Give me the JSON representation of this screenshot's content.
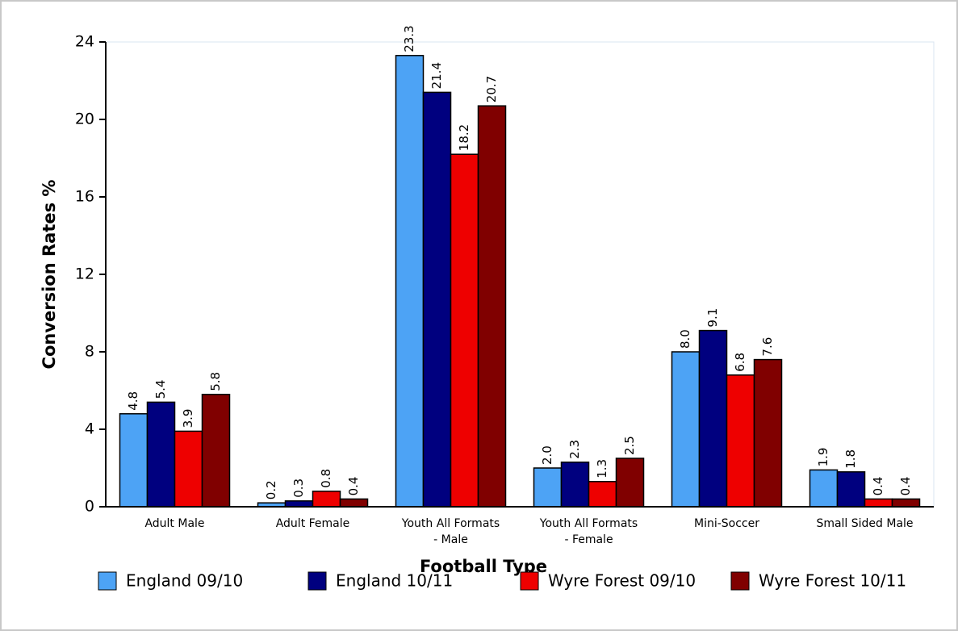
{
  "chart_data": {
    "type": "bar",
    "x_label": "Football Type",
    "y_label": "Conversion Rates %",
    "categories": [
      "Adult Male",
      "Adult Female",
      "Youth All Formats\n- Male",
      "Youth All Formats\n- Female",
      "Mini-Soccer",
      "Small Sided Male"
    ],
    "series": [
      {
        "name": "England 09/10",
        "color": "#4da3f5",
        "values": [
          4.8,
          0.2,
          23.3,
          2.0,
          8.0,
          1.9
        ],
        "value_labels": [
          "4.8",
          "0.2",
          "23.3",
          "2.0",
          "8.0",
          "1.9"
        ]
      },
      {
        "name": "England 10/11",
        "color": "#00007f",
        "values": [
          5.4,
          0.3,
          21.4,
          2.3,
          9.1,
          1.8
        ],
        "value_labels": [
          "5.4",
          "0.3",
          "21.4",
          "2.3",
          "9.1",
          "1.8"
        ]
      },
      {
        "name": "Wyre Forest 09/10",
        "color": "#ee0000",
        "values": [
          3.9,
          0.8,
          18.2,
          1.3,
          6.8,
          0.4
        ],
        "value_labels": [
          "3.9",
          "0.8",
          "18.2",
          "1.3",
          "6.8",
          "0.4"
        ]
      },
      {
        "name": "Wyre Forest 10/11",
        "color": "#800000",
        "values": [
          5.8,
          0.4,
          20.7,
          2.5,
          7.6,
          0.4
        ],
        "value_labels": [
          "5.8",
          "0.4",
          "20.7",
          "2.5",
          "7.6",
          "0.4"
        ]
      }
    ],
    "ylim": [
      0,
      24
    ],
    "yticks": [
      0,
      4,
      8,
      12,
      16,
      20,
      24
    ],
    "legend": "bottom"
  }
}
